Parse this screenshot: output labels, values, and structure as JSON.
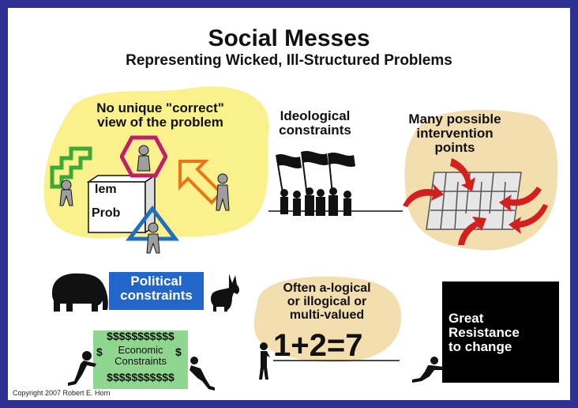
{
  "title": "Social Messes",
  "subtitle": "Representing Wicked, Ill-Structured Problems",
  "panels": {
    "no_unique": {
      "line1": "No unique \"correct\"",
      "line2": "view of the problem",
      "box_top": "lem",
      "box_bottom": "Prob"
    },
    "ideological": {
      "line1": "Ideological",
      "line2": "constraints"
    },
    "intervention": {
      "line1": "Many possible",
      "line2": "intervention",
      "line3": "points"
    },
    "political": {
      "line1": "Political",
      "line2": "constraints"
    },
    "economic": {
      "dollars_top": "$$$$$$$$$$$",
      "line1": "Economic",
      "line2": "Constraints",
      "dollars_bottom": "$$$$$$$$$$$",
      "dollar": "$"
    },
    "alogical": {
      "line1": "Often a-logical",
      "line2": "or illogical or",
      "line3": "multi-valued",
      "equation": "1+2=7"
    },
    "resistance": {
      "line1": "Great",
      "line2": "Resistance",
      "line3": "to change"
    }
  },
  "copyright": "Copyright 2007 Robert E. Horn",
  "colors": {
    "border": "#2e3192",
    "blob_yellow": "#faf08c",
    "blob_tan": "#f3deb0",
    "political_box": "#2266cc",
    "economic_box": "#8fd68f",
    "resistance_box": "#000000",
    "arrow_red": "#d41f1f",
    "figure_gray": "#9e9e9e",
    "hexagon_magenta": "#c0206a",
    "triangle_blue": "#1e6fc0",
    "arrow_orange": "#e8751a",
    "stair_green": "#3aaa35"
  }
}
